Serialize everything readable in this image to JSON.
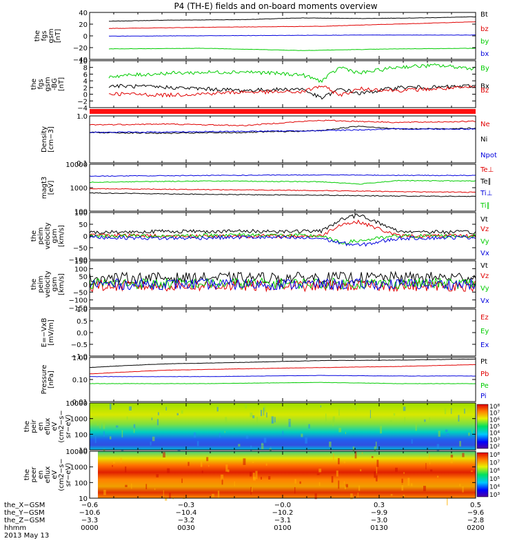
{
  "title": "P4 (TH-E) fields and on-board moments overview",
  "colors": {
    "black": "#000000",
    "red": "#e00000",
    "green": "#00cc00",
    "blue": "#0000dd"
  },
  "chart_data": [
    {
      "type": "line",
      "panel": "fgs",
      "ylabel": [
        "the",
        "fgs",
        "gsm",
        "[nT]"
      ],
      "ylim": [
        -40,
        45
      ],
      "yticks": [
        "40",
        "20",
        "0",
        "−20",
        "−40"
      ],
      "legend": [
        "Bt",
        "bz",
        "by",
        "bx"
      ],
      "legend_colors": [
        "black",
        "red",
        "green",
        "blue"
      ],
      "series": [
        {
          "name": "Bt",
          "color": "black",
          "t": [
            0.05,
            0.2,
            0.4,
            0.55,
            0.7,
            0.85,
            1.0
          ],
          "y": [
            29,
            31,
            32,
            35,
            34,
            35,
            37
          ]
        },
        {
          "name": "bz",
          "color": "red",
          "t": [
            0.05,
            0.3,
            0.6,
            0.8,
            1.0
          ],
          "y": [
            16,
            18,
            20,
            24,
            28
          ]
        },
        {
          "name": "by",
          "color": "green",
          "t": [
            0.05,
            0.3,
            0.55,
            0.8,
            1.0
          ],
          "y": [
            -21,
            -20,
            -24,
            -21,
            -20
          ]
        },
        {
          "name": "bx",
          "color": "blue",
          "t": [
            0.05,
            0.4,
            0.7,
            1.0
          ],
          "y": [
            2,
            3,
            4,
            4
          ]
        }
      ]
    },
    {
      "type": "line",
      "panel": "fgs-dsl-high",
      "ylabel": [
        "the",
        "fgs",
        "gsm",
        "-BG",
        "[nT]"
      ],
      "ylim": [
        -5,
        10
      ],
      "yticks": [
        "10",
        "8",
        "6",
        "4",
        "2",
        "0",
        "−2",
        "−4"
      ],
      "legend": [
        "By",
        "Bx",
        "Bz"
      ],
      "legend_colors": [
        "green",
        "black",
        "red"
      ],
      "series": [
        {
          "name": "By",
          "color": "green",
          "t": [
            0.05,
            0.2,
            0.4,
            0.55,
            0.6,
            0.65,
            0.7,
            0.8,
            0.9,
            1.0
          ],
          "y": [
            5,
            6,
            6.5,
            5.5,
            3.5,
            8,
            6,
            8,
            8.5,
            7.5
          ]
        },
        {
          "name": "Bx",
          "color": "black",
          "t": [
            0.05,
            0.2,
            0.4,
            0.55,
            0.6,
            0.65,
            0.7,
            0.8,
            0.9,
            1.0
          ],
          "y": [
            2,
            1.5,
            0.5,
            1,
            -2,
            1,
            -0.5,
            1.5,
            1.5,
            2
          ]
        },
        {
          "name": "Bz",
          "color": "red",
          "t": [
            0.05,
            0.2,
            0.4,
            0.55,
            0.6,
            0.65,
            0.7,
            0.8,
            0.9,
            1.0
          ],
          "y": [
            -0.5,
            -1,
            0,
            0,
            2,
            -1,
            1,
            0.5,
            1,
            1.5
          ]
        }
      ]
    },
    {
      "type": "line",
      "panel": "density",
      "ylabel": [
        "Density",
        "[cm−3]"
      ],
      "ylim": [
        0.1,
        1.2
      ],
      "yticks": [
        "1.0",
        "0.1"
      ],
      "legend": [
        "Ne",
        "Ni",
        "Npot"
      ],
      "legend_colors": [
        "red",
        "black",
        "blue"
      ],
      "series": [
        {
          "name": "Ne",
          "color": "red",
          "t": [
            0.0,
            0.2,
            0.4,
            0.6,
            0.7,
            0.8,
            1.0
          ],
          "y": [
            0.75,
            0.78,
            0.72,
            0.95,
            0.9,
            0.85,
            0.9
          ]
        },
        {
          "name": "Ni",
          "color": "black",
          "t": [
            0.0,
            0.2,
            0.4,
            0.6,
            0.7,
            0.8,
            1.0
          ],
          "y": [
            0.5,
            0.48,
            0.5,
            0.55,
            0.7,
            0.6,
            0.62
          ]
        },
        {
          "name": "Npot",
          "color": "blue",
          "t": [
            0.0,
            0.3,
            0.6,
            0.8,
            1.0
          ],
          "y": [
            0.5,
            0.52,
            0.55,
            0.6,
            0.6
          ]
        }
      ]
    },
    {
      "type": "line",
      "panel": "temperature",
      "ylabel": [
        "magt3",
        "[eV]"
      ],
      "ylim": [
        100,
        15000
      ],
      "yticks": [
        "10000",
        "1000",
        "100"
      ],
      "legend": [
        "Te⊥",
        "Te∥",
        "Ti⊥",
        "Ti∥"
      ],
      "legend_colors": [
        "red",
        "black",
        "blue",
        "green"
      ],
      "series": [
        {
          "name": "Ti⊥",
          "color": "blue",
          "t": [
            0.0,
            0.3,
            0.6,
            0.8,
            1.0
          ],
          "y": [
            4200,
            4500,
            4800,
            4600,
            4500
          ]
        },
        {
          "name": "Ti∥",
          "color": "green",
          "t": [
            0.0,
            0.3,
            0.6,
            0.7,
            0.8,
            1.0
          ],
          "y": [
            2200,
            2500,
            2300,
            1800,
            2600,
            2500
          ]
        },
        {
          "name": "Te⊥",
          "color": "red",
          "t": [
            0.0,
            0.3,
            0.6,
            0.8,
            1.0
          ],
          "y": [
            1100,
            1000,
            900,
            800,
            750
          ]
        },
        {
          "name": "Te∥",
          "color": "black",
          "t": [
            0.0,
            0.3,
            0.6,
            0.8,
            1.0
          ],
          "y": [
            700,
            600,
            550,
            500,
            480
          ]
        }
      ]
    },
    {
      "type": "line",
      "panel": "velocity-mom",
      "ylabel": [
        "the",
        "peim",
        "velocity",
        "gsm",
        "[km/s]"
      ],
      "ylim": [
        -100,
        100
      ],
      "yticks": [
        "100",
        "50",
        "0",
        "−50",
        "−100"
      ],
      "legend": [
        "Vt",
        "Vz",
        "Vy",
        "Vx"
      ],
      "legend_colors": [
        "black",
        "red",
        "green",
        "blue"
      ],
      "series": [
        {
          "name": "Vt",
          "color": "black",
          "t": [
            0.0,
            0.2,
            0.4,
            0.6,
            0.65,
            0.7,
            0.8,
            1.0
          ],
          "y": [
            15,
            20,
            20,
            20,
            70,
            90,
            20,
            15
          ]
        },
        {
          "name": "Vz",
          "color": "red",
          "t": [
            0.0,
            0.2,
            0.4,
            0.6,
            0.65,
            0.7,
            0.8,
            1.0
          ],
          "y": [
            5,
            0,
            0,
            0,
            50,
            60,
            0,
            0
          ]
        },
        {
          "name": "Vy",
          "color": "green",
          "t": [
            0.0,
            0.2,
            0.4,
            0.6,
            0.65,
            0.7,
            0.8,
            1.0
          ],
          "y": [
            0,
            0,
            5,
            0,
            -30,
            -20,
            0,
            0
          ]
        },
        {
          "name": "Vx",
          "color": "blue",
          "t": [
            0.0,
            0.2,
            0.4,
            0.6,
            0.65,
            0.7,
            0.8,
            1.0
          ],
          "y": [
            -5,
            -10,
            -5,
            -10,
            -30,
            -40,
            -10,
            -5
          ]
        }
      ]
    },
    {
      "type": "line",
      "panel": "velocity-burst",
      "ylabel": [
        "the",
        "peim",
        "velocity",
        "gsm",
        "[km/s]"
      ],
      "ylim": [
        -150,
        150
      ],
      "yticks": [
        "150",
        "100",
        "50",
        "0",
        "−50",
        "−100",
        "−150"
      ],
      "legend": [
        "Vt",
        "Vz",
        "Vy",
        "Vx"
      ],
      "legend_colors": [
        "black",
        "red",
        "green",
        "blue"
      ],
      "series": [
        {
          "name": "Vt",
          "color": "black",
          "t": [
            0.0,
            1.0
          ],
          "y": [
            40,
            45
          ]
        },
        {
          "name": "Vz",
          "color": "red",
          "t": [
            0.0,
            1.0
          ],
          "y": [
            -10,
            -10
          ]
        },
        {
          "name": "Vy",
          "color": "green",
          "t": [
            0.0,
            1.0
          ],
          "y": [
            5,
            5
          ]
        },
        {
          "name": "Vx",
          "color": "blue",
          "t": [
            0.0,
            1.0
          ],
          "y": [
            0,
            0
          ]
        }
      ]
    },
    {
      "type": "line",
      "panel": "efield",
      "ylabel": [
        "E=−VxB",
        "[mV/m]"
      ],
      "ylim": [
        -1,
        1
      ],
      "yticks": [
        "1.0",
        "0.5",
        "0.0",
        "−0.5",
        "−1.0"
      ],
      "legend": [
        "Ez",
        "Ey",
        "Ex"
      ],
      "legend_colors": [
        "red",
        "green",
        "blue"
      ],
      "series": []
    },
    {
      "type": "line",
      "panel": "pressure",
      "ylabel": [
        "Pressure",
        "[nPa]"
      ],
      "ylim": [
        0.01,
        1.2
      ],
      "yticks": [
        "1.00",
        "0.10",
        "0.01"
      ],
      "legend": [
        "Pt",
        "Pb",
        "Pe",
        "Pi"
      ],
      "legend_colors": [
        "black",
        "red",
        "green",
        "blue"
      ],
      "series": [
        {
          "name": "Pt",
          "color": "black",
          "t": [
            0.0,
            0.2,
            0.4,
            0.6,
            0.8,
            1.0
          ],
          "y": [
            0.4,
            0.6,
            0.7,
            0.85,
            0.9,
            1.0
          ]
        },
        {
          "name": "Pb",
          "color": "red",
          "t": [
            0.0,
            0.2,
            0.4,
            0.6,
            0.8,
            1.0
          ],
          "y": [
            0.2,
            0.3,
            0.35,
            0.4,
            0.45,
            0.55
          ]
        },
        {
          "name": "Pi",
          "color": "blue",
          "t": [
            0.0,
            0.3,
            0.6,
            0.8,
            1.0
          ],
          "y": [
            0.15,
            0.15,
            0.17,
            0.16,
            0.16
          ]
        },
        {
          "name": "Pe",
          "color": "green",
          "t": [
            0.0,
            0.3,
            0.6,
            0.8,
            1.0
          ],
          "y": [
            0.07,
            0.07,
            0.08,
            0.07,
            0.07
          ]
        }
      ]
    },
    {
      "type": "heatmap",
      "panel": "ion-spectrogram",
      "ylabel": [
        "the",
        "peir",
        "en",
        "eflux",
        "eV",
        "(cm2−s−",
        "sr−eV)"
      ],
      "ylim": [
        10,
        20000
      ],
      "yticks": [
        "10000",
        "1000",
        "100",
        "10"
      ],
      "colorbar_ticks": [
        "10⁸",
        "10⁷",
        "10⁶",
        "10⁵",
        "10⁴",
        "10³",
        "10²"
      ]
    },
    {
      "type": "heatmap",
      "panel": "electron-spectrogram",
      "ylabel": [
        "the",
        "peer",
        "en",
        "eflux",
        "eV",
        "(cm2−s−",
        "sr−eV)"
      ],
      "ylim": [
        10,
        20000
      ],
      "yticks": [
        "10000",
        "1000",
        "100",
        "10"
      ],
      "colorbar_ticks": [
        "10⁸",
        "10⁷",
        "10⁶",
        "10⁵",
        "10⁴",
        "10³"
      ]
    }
  ],
  "xaxis": {
    "rows": [
      {
        "label": "the_X−GSM",
        "values": [
          "−0.6",
          "−0.3",
          "−0.0",
          "0.3",
          "0.5"
        ]
      },
      {
        "label": "the_Y−GSM",
        "values": [
          "−10.6",
          "−10.4",
          "−10.2",
          "−9.9",
          "−9.6"
        ]
      },
      {
        "label": "the_Z−GSM",
        "values": [
          "−3.3",
          "−3.2",
          "−3.1",
          "−3.0",
          "−2.8"
        ]
      },
      {
        "label": "hhmm",
        "values": [
          "0000",
          "0030",
          "0100",
          "0130",
          "0200"
        ]
      }
    ],
    "date": "2013 May 13"
  }
}
